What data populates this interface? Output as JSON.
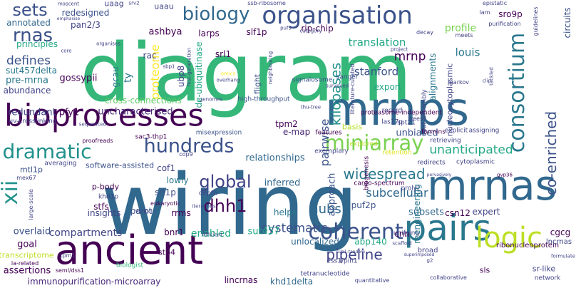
{
  "words": [
    {
      "id": "wiring",
      "text": "wiring",
      "color": "#31688e"
    },
    {
      "id": "diagram",
      "text": "diagram",
      "color": "#35b779"
    },
    {
      "id": "mrnps",
      "text": "mrnps",
      "color": "#31688e"
    },
    {
      "id": "ancient",
      "text": "ancient",
      "color": "#440154"
    },
    {
      "id": "bioprocesses",
      "text": "bioprocesses",
      "color": "#440154"
    },
    {
      "id": "mrnas",
      "text": "mrnas",
      "color": "#31688e"
    },
    {
      "id": "pairs",
      "text": "pairs",
      "color": "#2a788e"
    },
    {
      "id": "organisation",
      "text": "organisation",
      "color": "#3b528b"
    },
    {
      "id": "biology",
      "text": "biology",
      "color": "#31688e"
    },
    {
      "id": "coherent",
      "text": "coherent",
      "color": "#3b528b"
    },
    {
      "id": "consortium",
      "text": "consortium",
      "color": "#2a788e"
    },
    {
      "id": "logic",
      "text": "logic",
      "color": "#bddf26"
    },
    {
      "id": "dramatic",
      "text": "dramatic",
      "color": "#21918c"
    },
    {
      "id": "hundreds",
      "text": "hundreds",
      "color": "#3b528b"
    },
    {
      "id": "miniarray",
      "text": "miniarray",
      "color": "#7ad151"
    },
    {
      "id": "rnas",
      "text": "rnas",
      "color": "#3b528b"
    },
    {
      "id": "sets",
      "text": "sets",
      "color": "#3b528b"
    },
    {
      "id": "xii",
      "text": "xii",
      "color": "#21918c"
    },
    {
      "id": "global",
      "text": "global",
      "color": "#414487"
    },
    {
      "id": "dhh1",
      "text": "dhh1",
      "color": "#440154"
    },
    {
      "id": "hubs",
      "text": "hubs",
      "color": "#31688e"
    },
    {
      "id": "pipeline",
      "text": "pipeline",
      "color": "#414487"
    },
    {
      "id": "widespread",
      "text": "widespread",
      "color": "#2a788e"
    },
    {
      "id": "unanticipated",
      "text": "unanticipated",
      "color": "#22a884"
    },
    {
      "id": "co-enriched",
      "text": "co-enriched",
      "color": "#3b528b"
    },
    {
      "id": "kilobases",
      "text": "kilobases",
      "color": "#21918c"
    },
    {
      "id": "proteome",
      "text": "proteome",
      "color": "#fde725"
    },
    {
      "id": "mrnp",
      "text": "mrnp",
      "color": "#440154"
    },
    {
      "id": "systematic",
      "text": "systematic",
      "color": "#3b528b"
    },
    {
      "id": "subcellular",
      "text": "subcellular",
      "color": "#31688e"
    },
    {
      "id": "translation",
      "text": "translation",
      "color": "#22a884"
    },
    {
      "id": "defines",
      "text": "defines",
      "color": "#3b528b"
    },
    {
      "id": "profile",
      "text": "profile",
      "color": "#7ad151"
    },
    {
      "id": "louis",
      "text": "louis",
      "color": "#2a788e"
    },
    {
      "id": "stanford",
      "text": "stanford",
      "color": "#3b528b"
    },
    {
      "id": "principles",
      "text": "principles",
      "color": "#22a884"
    },
    {
      "id": "annotated",
      "text": "annotated",
      "color": "#31688e"
    },
    {
      "id": "pre-mrna",
      "text": "pre-mrna",
      "color": "#2a788e"
    },
    {
      "id": "sut457delta",
      "text": "sut457delta",
      "color": "#2a788e"
    },
    {
      "id": "abundance",
      "text": "abundance",
      "color": "#414487"
    },
    {
      "id": "gossypii",
      "text": "gossypii",
      "color": "#440154"
    },
    {
      "id": "redundant",
      "text": "redundant",
      "color": "#414487"
    },
    {
      "id": "pfy1",
      "text": "pfy1",
      "color": "#440154"
    },
    {
      "id": "uncharacterised",
      "text": "uncharacterised",
      "color": "#482878"
    },
    {
      "id": "cross-connections",
      "text": "cross-connections",
      "color": "#5ec962"
    },
    {
      "id": "ubp8",
      "text": "ubp8",
      "color": "#414487"
    },
    {
      "id": "de-ubiquitinase",
      "text": "de-ubiquitinase",
      "color": "#22a884"
    },
    {
      "id": "srl1",
      "text": "srl1",
      "color": "#440154"
    },
    {
      "id": "rac",
      "text": "rac",
      "color": "#414487"
    },
    {
      "id": "gcau",
      "text": "gcau",
      "color": "#2a788e"
    },
    {
      "id": "ty",
      "text": "ty",
      "color": "#2a788e"
    },
    {
      "id": "ashbya",
      "text": "ashbya",
      "color": "#440154"
    },
    {
      "id": "larps",
      "text": "larps",
      "color": "#440154"
    },
    {
      "id": "slf1p",
      "text": "slf1p",
      "color": "#440154"
    },
    {
      "id": "rip-chip",
      "text": "rip-chip",
      "color": "#440154"
    },
    {
      "id": "redesigned",
      "text": "redesigned",
      "color": "#3b528b"
    },
    {
      "id": "pan2/3",
      "text": "pan2/3",
      "color": "#414487"
    },
    {
      "id": "uaag",
      "text": "uaag",
      "color": "#414487"
    },
    {
      "id": "uaau",
      "text": "uaau",
      "color": "#414487"
    },
    {
      "id": "sro9p",
      "text": "sro9p",
      "color": "#440154"
    },
    {
      "id": "circuits",
      "text": "circuits",
      "color": "#3b528b"
    },
    {
      "id": "tpm2",
      "text": "tpm2",
      "color": "#440154"
    },
    {
      "id": "pairwise",
      "text": "pairwise",
      "color": "#3b528b"
    },
    {
      "id": "e-map",
      "text": "e-map",
      "color": "#482878"
    },
    {
      "id": "alignments",
      "text": "alignments",
      "color": "#2a788e"
    },
    {
      "id": "export",
      "text": "export",
      "color": "#22a884"
    },
    {
      "id": "nucleocytoplasmic",
      "text": "nucleocytoplasmic",
      "color": "#414487"
    },
    {
      "id": "unbiased",
      "text": "unbiased",
      "color": "#3b528b"
    },
    {
      "id": "relationships",
      "text": "relationships",
      "color": "#31688e"
    },
    {
      "id": "software-assisted",
      "text": "software-assisted",
      "color": "#3b528b"
    },
    {
      "id": "cof1",
      "text": "cof1",
      "color": "#414487"
    },
    {
      "id": "mtl1p",
      "text": "mtl1p",
      "color": "#3b528b"
    },
    {
      "id": "lowly",
      "text": "lowly",
      "color": "#2a788e"
    },
    {
      "id": "srl1p",
      "text": "srl1p",
      "color": "#3b528b"
    },
    {
      "id": "p-body",
      "text": "p-body",
      "color": "#440154"
    },
    {
      "id": "stfs",
      "text": "stfs",
      "color": "#440154"
    },
    {
      "id": "insights",
      "text": "insights",
      "color": "#414487"
    },
    {
      "id": "paint",
      "text": "paint",
      "color": "#3b528b"
    },
    {
      "id": "rrms",
      "text": "rrms",
      "color": "#440154"
    },
    {
      "id": "inferred",
      "text": "inferred",
      "color": "#31688e"
    },
    {
      "id": "approach",
      "text": "approach",
      "color": "#3b528b"
    },
    {
      "id": "helps",
      "text": "helps",
      "color": "#2a788e"
    },
    {
      "id": "puf2p",
      "text": "puf2p",
      "color": "#3b528b"
    },
    {
      "id": "subsets",
      "text": "subsets",
      "color": "#31688e"
    },
    {
      "id": "expert",
      "text": "expert",
      "color": "#414487"
    },
    {
      "id": "csn12",
      "text": "csn12",
      "color": "#440154"
    },
    {
      "id": "compartments",
      "text": "compartments",
      "color": "#414487"
    },
    {
      "id": "enabled",
      "text": "enabled",
      "color": "#22a884"
    },
    {
      "id": "overlaid",
      "text": "overlaid",
      "color": "#3b528b"
    },
    {
      "id": "goal",
      "text": "goal",
      "color": "#440154"
    },
    {
      "id": "bnr1",
      "text": "bnr1",
      "color": "#440154"
    },
    {
      "id": "sut457",
      "text": "sut457",
      "color": "#22a884"
    },
    {
      "id": "cnn",
      "text": "cnn",
      "color": "#440154"
    },
    {
      "id": "reengineering",
      "text": "reengineering",
      "color": "#2a788e"
    },
    {
      "id": "cgcg",
      "text": "cgcg",
      "color": "#440154"
    },
    {
      "id": "unlocalized",
      "text": "unlocalized",
      "color": "#31688e"
    },
    {
      "id": "abp140",
      "text": "abp140",
      "color": "#22a884"
    },
    {
      "id": "stp4",
      "text": "stp4",
      "color": "#440154"
    },
    {
      "id": "transcriptome",
      "text": "transcriptome",
      "color": "#bddf26"
    },
    {
      "id": "assertions",
      "text": "assertions",
      "color": "#440154"
    },
    {
      "id": "immunopurification-microarray",
      "text": "immunopurification-microarray",
      "color": "#482878"
    },
    {
      "id": "lincrnas",
      "text": "lincrnas",
      "color": "#440154"
    },
    {
      "id": "khd1delta",
      "text": "khd1delta",
      "color": "#31688e"
    },
    {
      "id": "sls",
      "text": "sls",
      "color": "#440154"
    },
    {
      "id": "sr-like",
      "text": "sr-like",
      "color": "#414487"
    },
    {
      "id": "ribonucleoprotein",
      "text": "ribonucleoprotein",
      "color": "#440154"
    },
    {
      "id": "lncrnas",
      "text": "lncrnas",
      "color": "#414487"
    },
    {
      "id": "broad",
      "text": "broad",
      "color": "#414487"
    },
    {
      "id": "flight",
      "text": "flight",
      "color": "#3b528b"
    },
    {
      "id": "basis",
      "text": "basis",
      "color": "#b5de2b"
    },
    {
      "id": "las17p",
      "text": "las17p",
      "color": "#414487"
    },
    {
      "id": "record",
      "text": "record",
      "color": "#414487"
    },
    {
      "id": "spt21",
      "text": "spt21",
      "color": "#414487"
    },
    {
      "id": "coat-assembly",
      "text": "coat-assembly",
      "color": "#414487"
    },
    {
      "id": "signalosome",
      "text": "signalosome",
      "color": "#3b528b"
    },
    {
      "id": "sanger",
      "text": "sanger",
      "color": "#3b528b"
    },
    {
      "id": "high-throughput",
      "text": "high-throughput",
      "color": "#3b528b"
    },
    {
      "id": "misexpression",
      "text": "misexpression",
      "color": "#3b528b"
    },
    {
      "id": "uv-crosslinking",
      "text": "uv-crosslinking",
      "color": "#414487"
    },
    {
      "id": "sac3-thp1",
      "text": "sac3-thp1",
      "color": "#440154"
    },
    {
      "id": "proteasome-independent",
      "text": "proteasome-independent",
      "color": "#440154"
    },
    {
      "id": "features",
      "text": "features",
      "color": "#440154"
    },
    {
      "id": "retrieving",
      "text": "retrieving",
      "color": "#414487"
    },
    {
      "id": "explicit",
      "text": "explicit",
      "color": "#414487"
    },
    {
      "id": "cytoplasmic",
      "text": "cytoplasmic",
      "color": "#414487"
    },
    {
      "id": "redirects",
      "text": "redirects",
      "color": "#414487"
    },
    {
      "id": "exemplary",
      "text": "exemplary",
      "color": "#414487"
    },
    {
      "id": "explored",
      "text": "explored",
      "color": "#b5de2b"
    },
    {
      "id": "formins",
      "text": "formins",
      "color": "#440154"
    },
    {
      "id": "assigning",
      "text": "assigning",
      "color": "#414487"
    },
    {
      "id": "retention",
      "text": "retention",
      "color": "#dce319"
    },
    {
      "id": "cargo-spectrum",
      "text": "cargo-spectrum",
      "color": "#440154"
    },
    {
      "id": "biogenesis",
      "text": "biogenesis",
      "color": "#440154"
    },
    {
      "id": "prolyl",
      "text": "prolyl",
      "color": "#414487"
    },
    {
      "id": "unifying",
      "text": "unifying",
      "color": "#414487"
    },
    {
      "id": "ess1/pin1",
      "text": "ess1/pin1",
      "color": "#414487"
    },
    {
      "id": "tetranucleotide",
      "text": "tetranucleotide",
      "color": "#414487"
    },
    {
      "id": "quantitative",
      "text": "quantitative",
      "color": "#414487"
    },
    {
      "id": "collaborative",
      "text": "collaborative",
      "color": "#414487"
    },
    {
      "id": "network",
      "text": "network",
      "color": "#414487"
    },
    {
      "id": "formulate",
      "text": "formulate",
      "color": "#414487"
    },
    {
      "id": "biologist",
      "text": "biologist",
      "color": "#35b779"
    },
    {
      "id": "myriocin",
      "text": "myriocin",
      "color": "#414487"
    },
    {
      "id": "depth",
      "text": "depth",
      "color": "#414487"
    },
    {
      "id": "iterations",
      "text": "iterations",
      "color": "#414487"
    },
    {
      "id": "khd1p",
      "text": "khd1p",
      "color": "#414487"
    },
    {
      "id": "cop9",
      "text": "cop9",
      "color": "#414487"
    },
    {
      "id": "averaging",
      "text": "averaging",
      "color": "#414487"
    },
    {
      "id": "proofreads",
      "text": "proofreads",
      "color": "#440154"
    },
    {
      "id": "mex67",
      "text": "mex67",
      "color": "#414487"
    },
    {
      "id": "large-scale",
      "text": "large-scale",
      "color": "#414487"
    },
    {
      "id": "eukaryotic",
      "text": "eukaryotic",
      "color": "#440154"
    },
    {
      "id": "la-related",
      "text": "la-related",
      "color": "#440154"
    },
    {
      "id": "seml/dss1",
      "text": "seml/dss1",
      "color": "#440154"
    },
    {
      "id": "tpm1",
      "text": "tpm1",
      "color": "#414487"
    },
    {
      "id": "efficient",
      "text": "efficient",
      "color": "#414487"
    },
    {
      "id": "scaffold",
      "text": "scaffold",
      "color": "#414487"
    },
    {
      "id": "sequenced",
      "text": "sequenced",
      "color": "#414487"
    },
    {
      "id": "mascent",
      "text": "mascent",
      "color": "#414487"
    },
    {
      "id": "emphasise",
      "text": "emphasise",
      "color": "#414487"
    },
    {
      "id": "srv2",
      "text": "srv2",
      "color": "#414487"
    },
    {
      "id": "ssb-ribosome",
      "text": "ssb-ribosome",
      "color": "#414487"
    },
    {
      "id": "epistatic",
      "text": "epistatic",
      "color": "#414487"
    },
    {
      "id": "purification",
      "text": "purification",
      "color": "#414487"
    },
    {
      "id": "guidelines",
      "text": "guidelines",
      "color": "#414487"
    },
    {
      "id": "lam",
      "text": "lam",
      "color": "#414487"
    },
    {
      "id": "organises",
      "text": "organises",
      "color": "#414487"
    },
    {
      "id": "core",
      "text": "core",
      "color": "#414487"
    },
    {
      "id": "category",
      "text": "category",
      "color": "#414487"
    },
    {
      "id": "puf5",
      "text": "puf5",
      "color": "#414487"
    },
    {
      "id": "sbp1",
      "text": "sbp1",
      "color": "#414487"
    },
    {
      "id": "first-generation",
      "text": "first-generation",
      "color": "#414487"
    },
    {
      "id": "neighbouring",
      "text": "neighbouring",
      "color": "#414487"
    },
    {
      "id": "project",
      "text": "project",
      "color": "#414487"
    },
    {
      "id": "decay",
      "text": "decay",
      "color": "#414487"
    },
    {
      "id": "meets",
      "text": "meets",
      "color": "#414487"
    },
    {
      "id": "markov",
      "text": "markov",
      "color": "#414487"
    },
    {
      "id": "clip",
      "text": "clip",
      "color": "#414487"
    },
    {
      "id": "tackled",
      "text": "tackled",
      "color": "#414487"
    },
    {
      "id": "surveyed",
      "text": "surveyed",
      "color": "#414487"
    },
    {
      "id": "literature-curated",
      "text": "literature-curated",
      "color": "#414487"
    },
    {
      "id": "omics",
      "text": "omics",
      "color": "#fde725"
    },
    {
      "id": "overhang",
      "text": "overhang",
      "color": "#414487"
    },
    {
      "id": "genomes",
      "text": "genomes",
      "color": "#414487"
    },
    {
      "id": "trees",
      "text": "trees",
      "color": "#414487"
    },
    {
      "id": "thu-tree",
      "text": "thu-tree",
      "color": "#414487"
    },
    {
      "id": "pervasively",
      "text": "pervasively",
      "color": "#414487"
    },
    {
      "id": "gvp36",
      "text": "gvp36",
      "color": "#440154"
    },
    {
      "id": "superimposed",
      "text": "superimposed",
      "color": "#414487"
    },
    {
      "id": "g2",
      "text": "g2",
      "color": "#414487"
    },
    {
      "id": "sub1-tandem",
      "text": "sub1-tandem",
      "color": "#414487"
    }
  ]
}
